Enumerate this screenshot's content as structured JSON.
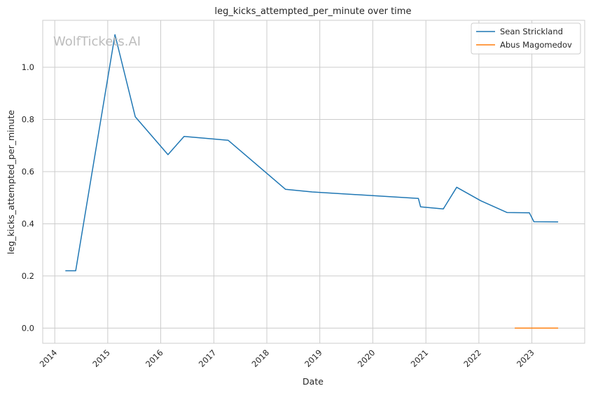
{
  "watermark": "WolfTickets.AI",
  "chart_data": {
    "type": "line",
    "title": "leg_kicks_attempted_per_minute over time",
    "xlabel": "Date",
    "ylabel": "leg_kicks_attempted_per_minute",
    "xlim": [
      "2013-10-10",
      "2023-12-31"
    ],
    "ylim": [
      -0.058,
      1.18
    ],
    "x_ticks": [
      "2014",
      "2015",
      "2016",
      "2017",
      "2018",
      "2019",
      "2020",
      "2021",
      "2022",
      "2023"
    ],
    "y_ticks": [
      "0.0",
      "0.2",
      "0.4",
      "0.6",
      "0.8",
      "1.0"
    ],
    "grid": true,
    "legend_position": "top-right",
    "series": [
      {
        "name": "Sean Strickland",
        "color": "#1f77b4",
        "points": [
          [
            "2014-03-15",
            0.22
          ],
          [
            "2014-05-25",
            0.22
          ],
          [
            "2015-02-20",
            1.125
          ],
          [
            "2015-07-10",
            0.81
          ],
          [
            "2016-02-20",
            0.665
          ],
          [
            "2016-06-10",
            0.735
          ],
          [
            "2017-04-10",
            0.72
          ],
          [
            "2018-05-10",
            0.532
          ],
          [
            "2018-11-10",
            0.522
          ],
          [
            "2020-11-10",
            0.497
          ],
          [
            "2020-11-25",
            0.465
          ],
          [
            "2021-05-01",
            0.457
          ],
          [
            "2021-08-01",
            0.54
          ],
          [
            "2022-01-15",
            0.488
          ],
          [
            "2022-07-15",
            0.443
          ],
          [
            "2022-12-15",
            0.442
          ],
          [
            "2023-01-15",
            0.408
          ],
          [
            "2023-07-01",
            0.407
          ]
        ]
      },
      {
        "name": "Abus Magomedov",
        "color": "#ff7f0e",
        "points": [
          [
            "2022-09-05",
            0.0
          ],
          [
            "2023-07-01",
            0.0
          ]
        ]
      }
    ]
  }
}
